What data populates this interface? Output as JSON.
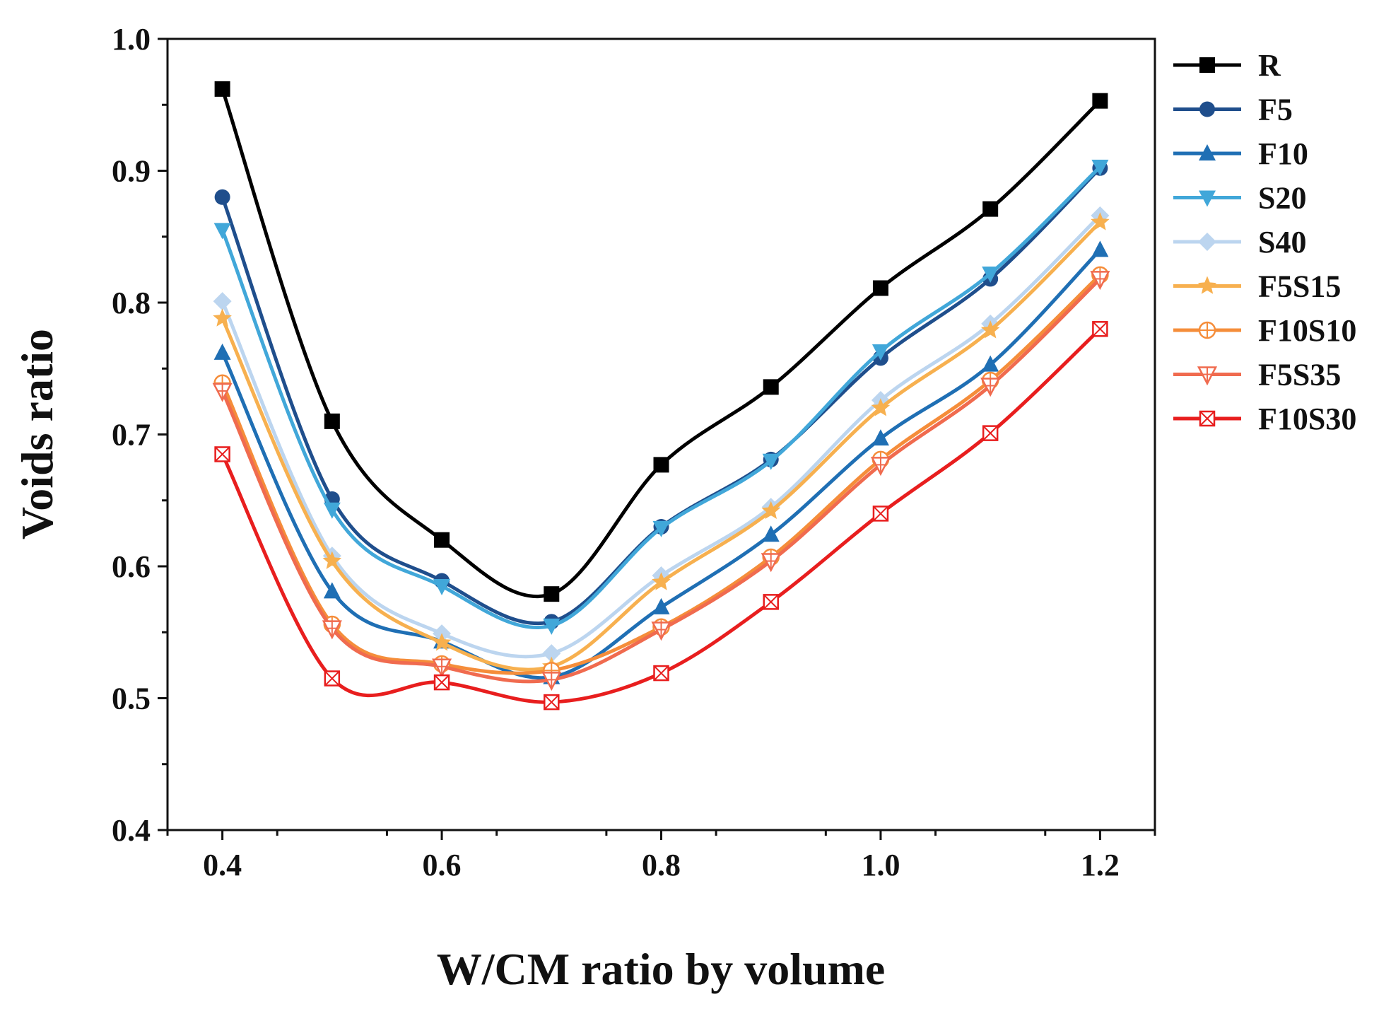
{
  "chart_data": {
    "type": "line",
    "title": "",
    "xlabel": "W/CM ratio by volume",
    "ylabel": "Voids ratio",
    "xlim": [
      0.35,
      1.25
    ],
    "ylim": [
      0.4,
      1.0
    ],
    "xticks": [
      0.4,
      0.6,
      0.8,
      1.0,
      1.2
    ],
    "xtick_labels": [
      "0.4",
      "0.6",
      "0.8",
      "1.0",
      "1.2"
    ],
    "yticks": [
      0.4,
      0.5,
      0.6,
      0.7,
      0.8,
      0.9,
      1.0
    ],
    "ytick_labels": [
      "0.4",
      "0.5",
      "0.6",
      "0.7",
      "0.8",
      "0.9",
      "1.0"
    ],
    "grid": false,
    "legend_position": "right",
    "x": [
      0.4,
      0.5,
      0.6,
      0.7,
      0.8,
      0.9,
      1.0,
      1.1,
      1.2
    ],
    "series": [
      {
        "name": "R",
        "color": "#000000",
        "marker": "square",
        "values": [
          0.962,
          0.71,
          0.62,
          0.579,
          0.677,
          0.736,
          0.811,
          0.871,
          0.953
        ]
      },
      {
        "name": "F5",
        "color": "#1f4e8c",
        "marker": "circle",
        "values": [
          0.88,
          0.651,
          0.589,
          0.558,
          0.63,
          0.681,
          0.758,
          0.818,
          0.902
        ]
      },
      {
        "name": "F10",
        "color": "#1f6fb4",
        "marker": "triangle-up",
        "values": [
          0.762,
          0.581,
          0.543,
          0.516,
          0.569,
          0.624,
          0.697,
          0.753,
          0.84
        ]
      },
      {
        "name": "S20",
        "color": "#41a7d9",
        "marker": "triangle-down",
        "values": [
          0.855,
          0.643,
          0.585,
          0.555,
          0.629,
          0.68,
          0.763,
          0.822,
          0.903
        ]
      },
      {
        "name": "S40",
        "color": "#bcd5ef",
        "marker": "diamond",
        "values": [
          0.801,
          0.608,
          0.549,
          0.534,
          0.593,
          0.645,
          0.726,
          0.784,
          0.866
        ]
      },
      {
        "name": "F5S15",
        "color": "#f7b04f",
        "marker": "star",
        "values": [
          0.788,
          0.604,
          0.542,
          0.524,
          0.588,
          0.642,
          0.72,
          0.779,
          0.861
        ]
      },
      {
        "name": "F10S10",
        "color": "#f58d3a",
        "marker": "circle-plus",
        "values": [
          0.739,
          0.556,
          0.526,
          0.521,
          0.554,
          0.607,
          0.681,
          0.741,
          0.821
        ]
      },
      {
        "name": "F5S35",
        "color": "#f06b4f",
        "marker": "triangle-down-open",
        "values": [
          0.733,
          0.553,
          0.524,
          0.514,
          0.552,
          0.604,
          0.677,
          0.737,
          0.818
        ]
      },
      {
        "name": "F10S30",
        "color": "#e81e1e",
        "marker": "square-x",
        "values": [
          0.685,
          0.515,
          0.512,
          0.497,
          0.519,
          0.573,
          0.64,
          0.701,
          0.78
        ]
      }
    ]
  }
}
